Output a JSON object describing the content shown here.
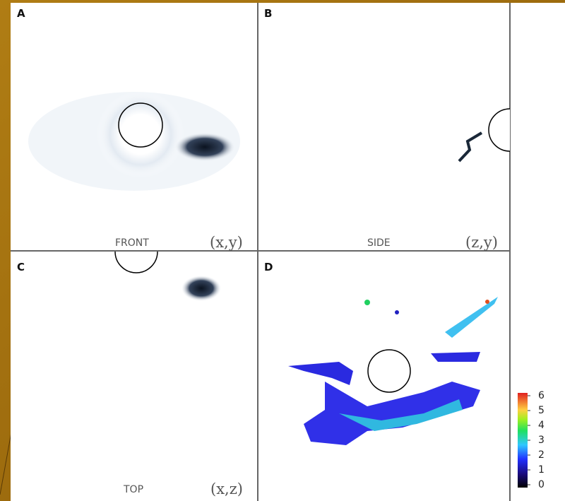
{
  "panels": [
    {
      "letter": "A",
      "view": "FRONT",
      "coords": "(x,y)"
    },
    {
      "letter": "B",
      "view": "SIDE",
      "coords": "(z,y)"
    },
    {
      "letter": "C",
      "view": "TOP",
      "coords": "(x,z)"
    },
    {
      "letter": "D"
    }
  ],
  "colorbar": {
    "ticks": [
      0,
      1,
      2,
      3,
      4,
      5,
      6
    ]
  }
}
